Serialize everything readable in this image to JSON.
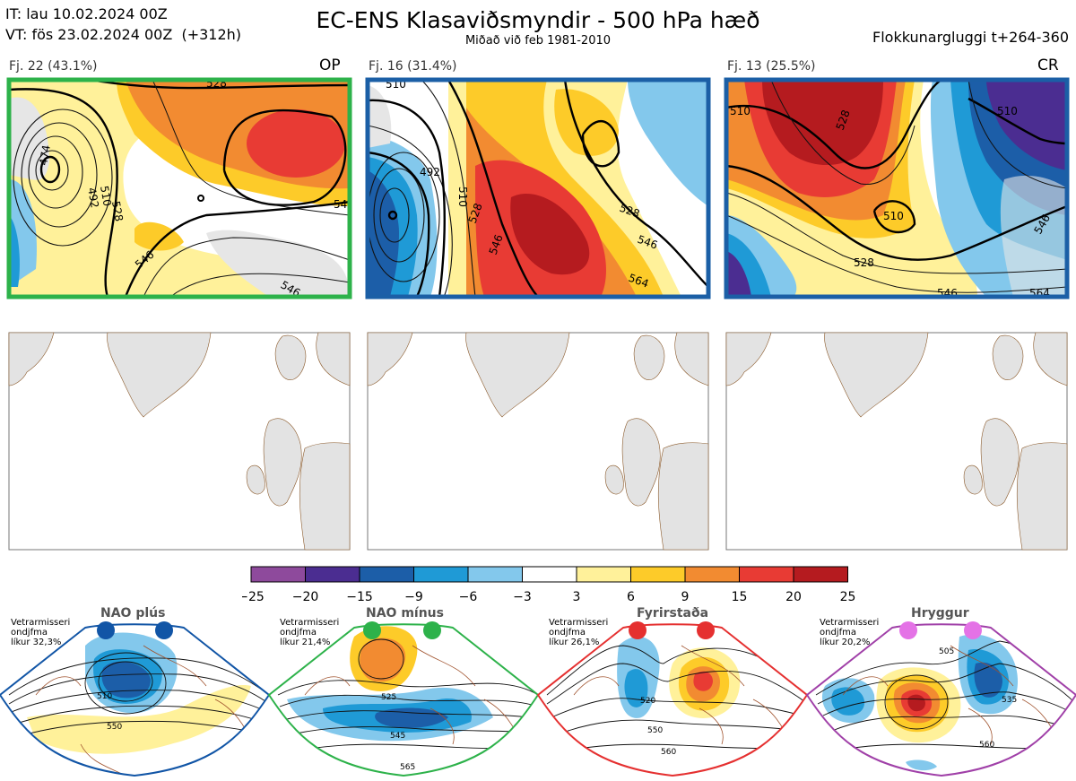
{
  "header": {
    "it_line": "IT: lau 10.02.2024 00Z",
    "vt_line": "VT: fös 23.02.2024 00Z  (+312h)",
    "title": "EC-ENS Klasaviðsmyndir - 500 hPa hæð",
    "subtitle": "Miðað við feb 1981-2010",
    "window": "Flokkunargluggi t+264-360"
  },
  "panels": [
    {
      "label": "Fj. 22 (43.1%)",
      "tag": "OP",
      "border": "#2db24a",
      "members": 22,
      "percent": 43.1,
      "contours": [
        "528",
        "474",
        "492",
        "510",
        "528",
        "546",
        "546",
        "546"
      ]
    },
    {
      "label": "Fj. 16 (31.4%)",
      "tag": "",
      "border": "#1b5fa6",
      "members": 16,
      "percent": 31.4,
      "contours": [
        "510",
        "492",
        "510",
        "528",
        "546",
        "564",
        "528",
        "546"
      ]
    },
    {
      "label": "Fj. 13 (25.5%)",
      "tag": "CR",
      "border": "#1b5fa6",
      "members": 13,
      "percent": 25.5,
      "contours": [
        "510",
        "528",
        "510",
        "528",
        "546",
        "510",
        "546",
        "564"
      ]
    }
  ],
  "chart_data": {
    "type": "heatmap",
    "title": "EC-ENS Klasaviðsmyndir - 500 hPa hæð",
    "colorbar": {
      "ticks": [
        "−25",
        "−20",
        "−15",
        "−9",
        "−6",
        "−3",
        "3",
        "6",
        "9",
        "15",
        "20",
        "25"
      ],
      "tick_values": [
        -25,
        -20,
        -15,
        -9,
        -6,
        -3,
        3,
        6,
        9,
        15,
        20,
        25
      ],
      "colors": [
        "#8e4a9c",
        "#4b2d91",
        "#1c5ea8",
        "#1f9ad6",
        "#83c8ec",
        "#ffffff",
        "#fff19a",
        "#fdcb29",
        "#f28b31",
        "#e83b34",
        "#b51b1f"
      ]
    },
    "clusters": [
      {
        "name": "Fj. 22",
        "members": 22,
        "percent": 43.1,
        "tag": "OP"
      },
      {
        "name": "Fj. 16",
        "members": 16,
        "percent": 31.4,
        "tag": ""
      },
      {
        "name": "Fj. 13",
        "members": 13,
        "percent": 25.5,
        "tag": "CR"
      }
    ],
    "regimes": [
      {
        "name": "NAO plús",
        "likelihood_percent": 32.3
      },
      {
        "name": "NAO mínus",
        "likelihood_percent": 21.4
      },
      {
        "name": "Fyrirstaða",
        "likelihood_percent": 26.1
      },
      {
        "name": "Hryggur",
        "likelihood_percent": 20.2
      }
    ]
  },
  "regimes": [
    {
      "name": "NAO plús",
      "text": "Vetrarmisseri\nondjfma\nlíkur 32,3%",
      "color": "#1155a6",
      "labels": [
        "510",
        "550"
      ]
    },
    {
      "name": "NAO mínus",
      "text": "Vetrarmisseri\nondjfma\nlíkur 21,4%",
      "color": "#2db24a",
      "labels": [
        "525",
        "545",
        "565"
      ]
    },
    {
      "name": "Fyrirstaða",
      "text": "Vetrarmisseri\nondjfma\nlíkur 26,1%",
      "color": "#e53030",
      "labels": [
        "520",
        "550",
        "560"
      ]
    },
    {
      "name": "Hryggur",
      "text": "Vetrarmisseri\nondjfma\nlíkur 20,2%",
      "color": "#e472e6",
      "labels": [
        "505",
        "535",
        "560"
      ]
    }
  ]
}
